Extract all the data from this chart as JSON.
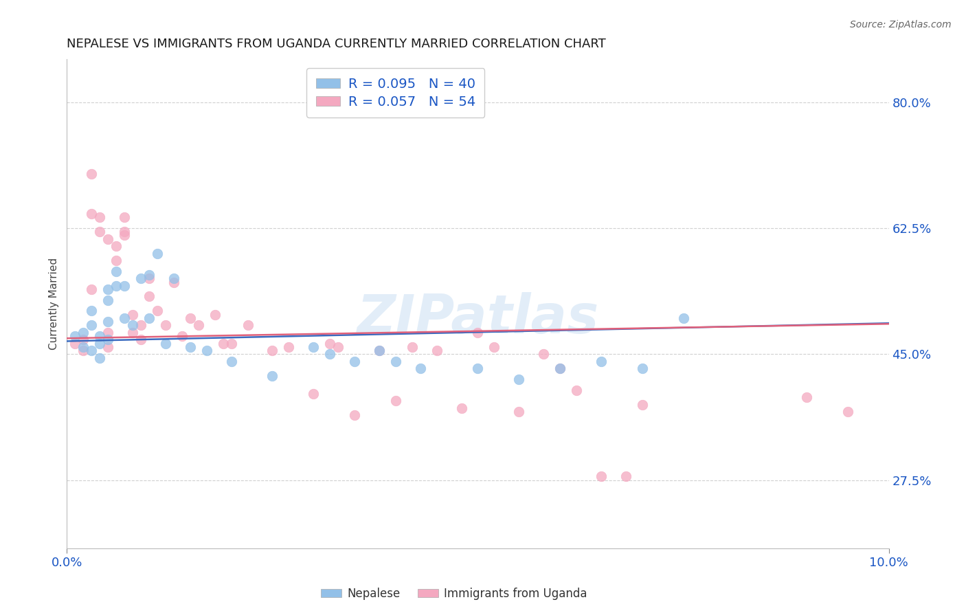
{
  "title": "NEPALESE VS IMMIGRANTS FROM UGANDA CURRENTLY MARRIED CORRELATION CHART",
  "source": "Source: ZipAtlas.com",
  "ylabel": "Currently Married",
  "yticks": [
    0.275,
    0.45,
    0.625,
    0.8
  ],
  "ytick_labels": [
    "27.5%",
    "45.0%",
    "62.5%",
    "80.0%"
  ],
  "xlim": [
    0.0,
    0.1
  ],
  "ylim": [
    0.18,
    0.86
  ],
  "watermark": "ZIPatlas",
  "nepalese_color": "#92c0e8",
  "uganda_color": "#f4a8c0",
  "trend_nepalese_color": "#3a6abf",
  "trend_uganda_color": "#e0607a",
  "background_color": "#ffffff",
  "grid_color": "#d0d0d0",
  "title_color": "#1a1a1a",
  "axis_label_color": "#1a56c4",
  "title_fontsize": 13,
  "marker_size": 110,
  "nepalese_x": [
    0.001,
    0.002,
    0.002,
    0.003,
    0.003,
    0.003,
    0.004,
    0.004,
    0.004,
    0.005,
    0.005,
    0.005,
    0.005,
    0.006,
    0.006,
    0.007,
    0.007,
    0.008,
    0.009,
    0.01,
    0.01,
    0.011,
    0.012,
    0.013,
    0.015,
    0.017,
    0.02,
    0.025,
    0.03,
    0.032,
    0.035,
    0.038,
    0.04,
    0.043,
    0.05,
    0.055,
    0.06,
    0.065,
    0.07,
    0.075
  ],
  "nepalese_y": [
    0.475,
    0.48,
    0.46,
    0.49,
    0.51,
    0.455,
    0.465,
    0.475,
    0.445,
    0.54,
    0.525,
    0.495,
    0.47,
    0.565,
    0.545,
    0.545,
    0.5,
    0.49,
    0.555,
    0.56,
    0.5,
    0.59,
    0.465,
    0.555,
    0.46,
    0.455,
    0.44,
    0.42,
    0.46,
    0.45,
    0.44,
    0.455,
    0.44,
    0.43,
    0.43,
    0.415,
    0.43,
    0.44,
    0.43,
    0.5
  ],
  "uganda_x": [
    0.001,
    0.002,
    0.002,
    0.003,
    0.003,
    0.003,
    0.004,
    0.004,
    0.005,
    0.005,
    0.005,
    0.006,
    0.006,
    0.007,
    0.007,
    0.007,
    0.008,
    0.008,
    0.009,
    0.009,
    0.01,
    0.01,
    0.011,
    0.012,
    0.013,
    0.014,
    0.015,
    0.016,
    0.018,
    0.019,
    0.02,
    0.022,
    0.025,
    0.027,
    0.03,
    0.032,
    0.033,
    0.035,
    0.038,
    0.04,
    0.042,
    0.045,
    0.048,
    0.05,
    0.052,
    0.055,
    0.058,
    0.06,
    0.062,
    0.065,
    0.068,
    0.07,
    0.09,
    0.095
  ],
  "uganda_y": [
    0.465,
    0.47,
    0.455,
    0.7,
    0.645,
    0.54,
    0.64,
    0.62,
    0.61,
    0.48,
    0.46,
    0.6,
    0.58,
    0.64,
    0.62,
    0.615,
    0.505,
    0.48,
    0.49,
    0.47,
    0.555,
    0.53,
    0.51,
    0.49,
    0.55,
    0.475,
    0.5,
    0.49,
    0.505,
    0.465,
    0.465,
    0.49,
    0.455,
    0.46,
    0.395,
    0.465,
    0.46,
    0.365,
    0.455,
    0.385,
    0.46,
    0.455,
    0.375,
    0.48,
    0.46,
    0.37,
    0.45,
    0.43,
    0.4,
    0.28,
    0.28,
    0.38,
    0.39,
    0.37
  ],
  "trend_nep_x0": 0.0,
  "trend_nep_y0": 0.468,
  "trend_nep_x1": 0.1,
  "trend_nep_y1": 0.493,
  "trend_uga_x0": 0.0,
  "trend_uga_y0": 0.472,
  "trend_uga_x1": 0.1,
  "trend_uga_y1": 0.492
}
